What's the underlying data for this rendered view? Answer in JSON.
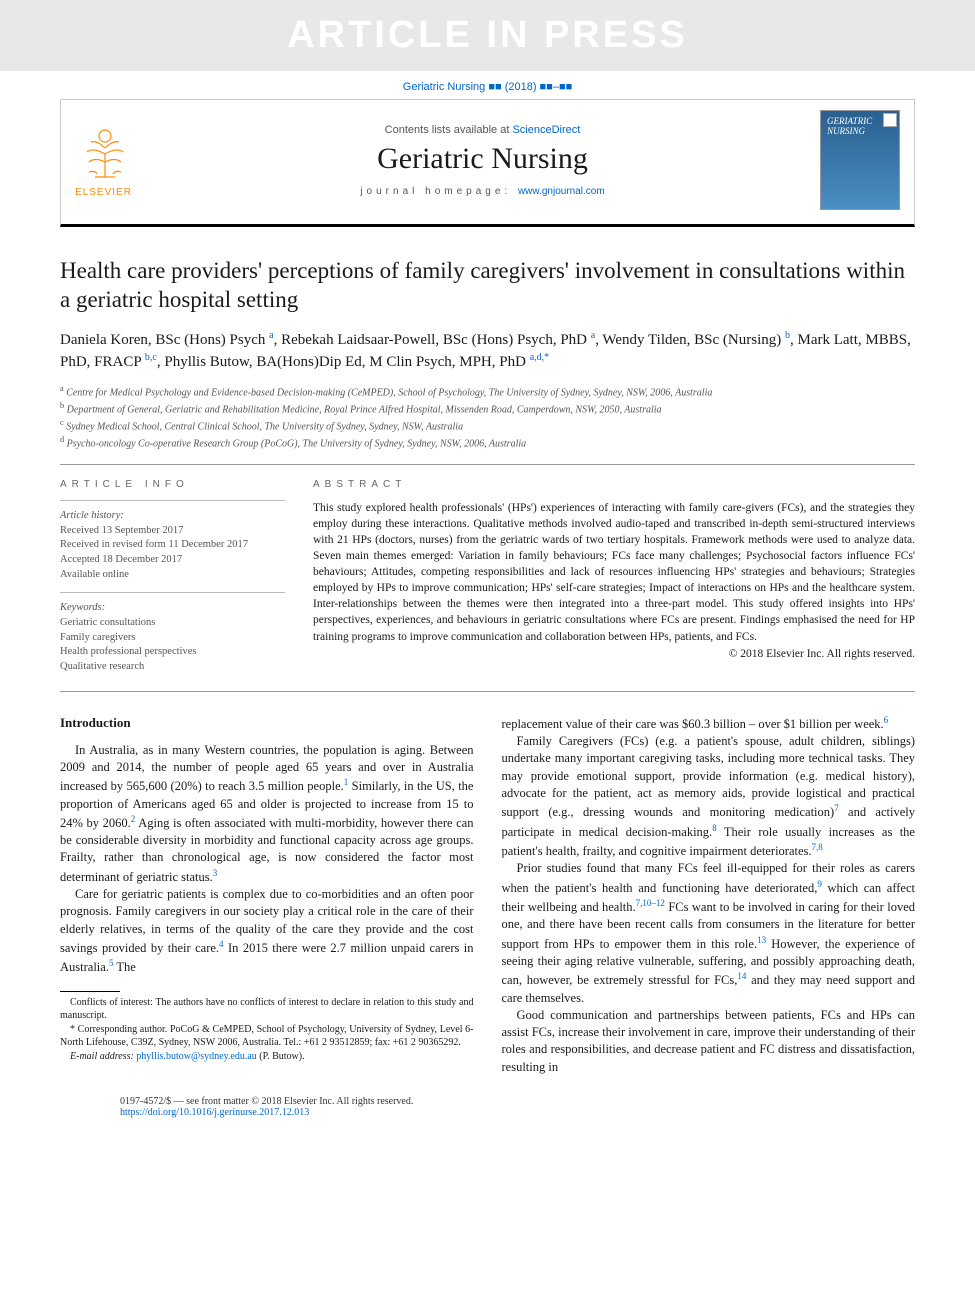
{
  "watermark": "ARTICLE IN PRESS",
  "citation": "Geriatric Nursing ■■ (2018) ■■–■■",
  "masthead": {
    "contents_prefix": "Contents lists available at ",
    "contents_link": "ScienceDirect",
    "journal": "Geriatric Nursing",
    "homepage_label": "journal homepage: ",
    "homepage_url": "www.gnjournal.com",
    "publisher": "ELSEVIER",
    "cover_title": "GERIATRIC NURSING"
  },
  "title": "Health care providers' perceptions of family caregivers' involvement in consultations within a geriatric hospital setting",
  "authors_html": "Daniela Koren, BSc (Hons) Psych <sup>a</sup>, Rebekah Laidsaar-Powell, BSc (Hons) Psych, PhD <sup>a</sup>, Wendy Tilden, BSc (Nursing) <sup>b</sup>, Mark Latt, MBBS, PhD, FRACP <sup>b,c</sup>, Phyllis Butow, BA(Hons)Dip Ed, M Clin Psych, MPH, PhD <sup>a,d,*</sup>",
  "affiliations": [
    "a Centre for Medical Psychology and Evidence-based Decision-making (CeMPED), School of Psychology, The University of Sydney, Sydney, NSW, 2006, Australia",
    "b Department of General, Geriatric and Rehabilitation Medicine, Royal Prince Alfred Hospital, Missenden Road, Camperdown, NSW, 2050, Australia",
    "c Sydney Medical School, Central Clinical School, The University of Sydney, Sydney, NSW, Australia",
    "d Psycho-oncology Co-operative Research Group (PoCoG), The University of Sydney, Sydney, NSW, 2006, Australia"
  ],
  "article_info_label": "ARTICLE INFO",
  "abstract_label": "ABSTRACT",
  "history": {
    "heading": "Article history:",
    "lines": [
      "Received 13 September 2017",
      "Received in revised form 11 December 2017",
      "Accepted 18 December 2017",
      "Available online"
    ]
  },
  "keywords": {
    "heading": "Keywords:",
    "items": [
      "Geriatric consultations",
      "Family caregivers",
      "Health professional perspectives",
      "Qualitative research"
    ]
  },
  "abstract": "This study explored health professionals' (HPs') experiences of interacting with family care-givers (FCs), and the strategies they employ during these interactions. Qualitative methods involved audio-taped and transcribed in-depth semi-structured interviews with 21 HPs (doctors, nurses) from the geriatric wards of two tertiary hospitals. Framework methods were used to analyze data. Seven main themes emerged: Variation in family behaviours; FCs face many challenges; Psychosocial factors influence FCs' behaviours; Attitudes, competing responsibilities and lack of resources influencing HPs' strategies and behaviours; Strategies employed by HPs to improve communication; HPs' self-care strategies; Impact of interactions on HPs and the healthcare system. Inter-relationships between the themes were then integrated into a three-part model. This study offered insights into HPs' perspectives, experiences, and behaviours in geriatric consultations where FCs are present. Findings emphasised the need for HP training programs to improve communication and collaboration between HPs, patients, and FCs.",
  "copyright": "© 2018 Elsevier Inc. All rights reserved.",
  "intro_heading": "Introduction",
  "paragraphs": {
    "p1": "In Australia, as in many Western countries, the population is aging. Between 2009 and 2014, the number of people aged 65 years and over in Australia increased by 565,600 (20%) to reach 3.5 million people.¹ Similarly, in the US, the proportion of Americans aged 65 and older is projected to increase from 15 to 24% by 2060.² Aging is often associated with multi-morbidity, however there can be considerable diversity in morbidity and functional capacity across age groups. Frailty, rather than chronological age, is now considered the factor most determinant of geriatric status.³",
    "p2": "Care for geriatric patients is complex due to co-morbidities and an often poor prognosis. Family caregivers in our society play a critical role in the care of their elderly relatives, in terms of the quality of the care they provide and the cost savings provided by their care.⁴ In 2015 there were 2.7 million unpaid carers in Australia.⁵ The",
    "p3": "replacement value of their care was $60.3 billion – over $1 billion per week.⁶",
    "p4": "Family Caregivers (FCs) (e.g. a patient's spouse, adult children, siblings) undertake many important caregiving tasks, including more technical tasks. They may provide emotional support, provide information (e.g. medical history), advocate for the patient, act as memory aids, provide logistical and practical support (e.g., dressing wounds and monitoring medication)⁷ and actively participate in medical decision-making.⁸ Their role usually increases as the patient's health, frailty, and cognitive impairment deteriorates.⁷,⁸",
    "p5": "Prior studies found that many FCs feel ill-equipped for their roles as carers when the patient's health and functioning have deteriorated,⁹ which can affect their wellbeing and health.⁷,¹⁰⁻¹² FCs want to be involved in caring for their loved one, and there have been recent calls from consumers in the literature for better support from HPs to empower them in this role.¹³ However, the experience of seeing their aging relative vulnerable, suffering, and possibly approaching death, can, however, be extremely stressful for FCs,¹⁴ and they may need support and care themselves.",
    "p6": "Good communication and partnerships between patients, FCs and HPs can assist FCs, increase their involvement in care, improve their understanding of their roles and responsibilities, and decrease patient and FC distress and dissatisfaction, resulting in"
  },
  "footnotes": {
    "conflicts": "Conflicts of interest: The authors have no conflicts of interest to declare in relation to this study and manuscript.",
    "corresponding": "* Corresponding author. PoCoG & CeMPED, School of Psychology, University of Sydney, Level 6-North Lifehouse, C39Z, Sydney, NSW 2006, Australia. Tel.: +61 2 93512859; fax: +61 2 90365292.",
    "email_label": "E-mail address: ",
    "email": "phyllis.butow@sydney.edu.au",
    "email_suffix": " (P. Butow)."
  },
  "footer": {
    "line1": "0197-4572/$ — see front matter © 2018 Elsevier Inc. All rights reserved.",
    "doi": "https://doi.org/10.1016/j.gerinurse.2017.12.013"
  },
  "colors": {
    "link": "#0066cc",
    "elsevier_orange": "#ff8c00",
    "body_text": "#1a1a1a",
    "muted": "#555555",
    "rule": "#999999",
    "watermark_bg": "#e8e8e8",
    "watermark_fg": "#ffffff"
  },
  "typography": {
    "title_pt": 23,
    "authors_pt": 15,
    "body_pt": 12.5,
    "abstract_pt": 11.5,
    "footnote_pt": 10,
    "journal_name_pt": 30
  }
}
